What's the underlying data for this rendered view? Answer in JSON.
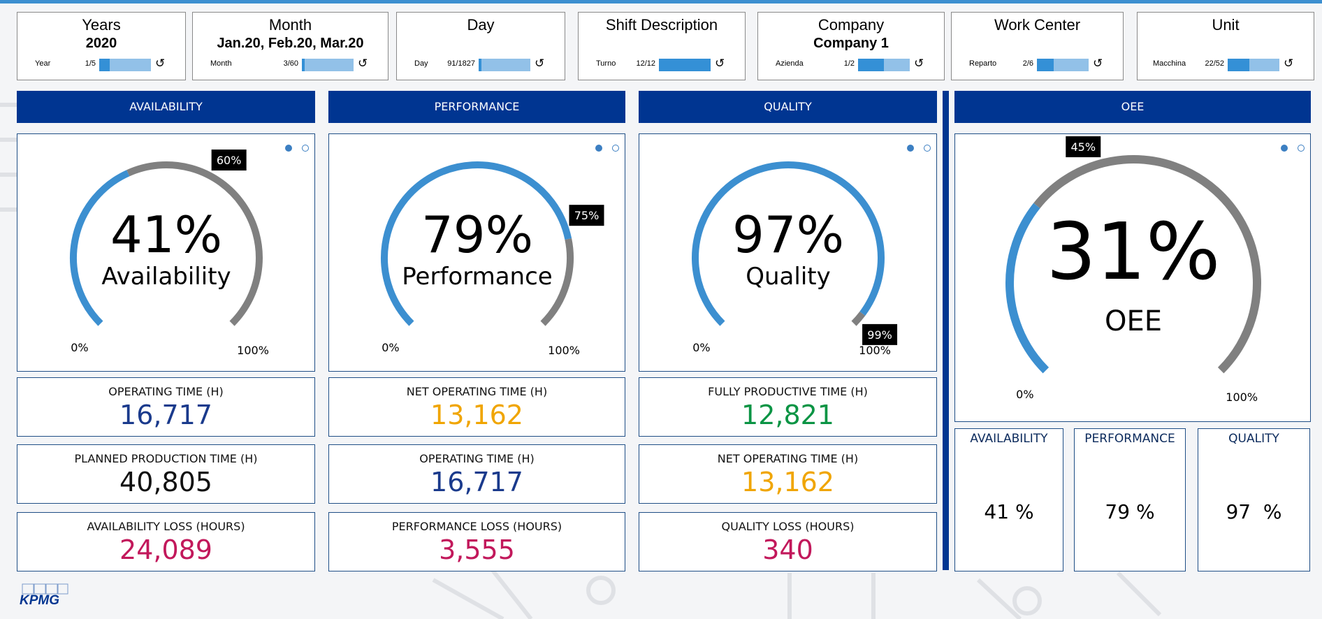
{
  "filters": [
    {
      "title": "Years",
      "value": "2020",
      "label": "Year",
      "count": "1/5",
      "fraction": 0.2
    },
    {
      "title": "Month",
      "value": "Jan.20, Feb.20, Mar.20",
      "label": "Month",
      "count": "3/60",
      "fraction": 0.05
    },
    {
      "title": "Day",
      "value": "",
      "label": "Day",
      "count": "91/1827",
      "fraction": 0.05
    },
    {
      "title": "Shift Description",
      "value": "",
      "label": "Turno",
      "count": "12/12",
      "fraction": 1.0
    },
    {
      "title": "Company",
      "value": "Company 1",
      "label": "Azienda",
      "count": "1/2",
      "fraction": 0.5
    },
    {
      "title": "Work Center",
      "value": "",
      "label": "Reparto",
      "count": "2/6",
      "fraction": 0.33
    },
    {
      "title": "Unit",
      "value": "",
      "label": "Macchina",
      "count": "22/52",
      "fraction": 0.42
    }
  ],
  "reset_icon": "reset-icon",
  "headers": {
    "availability": "AVAILABILITY",
    "performance": "PERFORMANCE",
    "quality": "QUALITY",
    "oee": "OEE"
  },
  "gauges": [
    {
      "key": "availability",
      "value_text": "41%",
      "label": "Availability",
      "value": 41,
      "target": 60,
      "target_text": "60%",
      "min_text": "0%",
      "max_text": "100%"
    },
    {
      "key": "performance",
      "value_text": "79%",
      "label": "Performance",
      "value": 79,
      "target": 75,
      "target_text": "75%",
      "min_text": "0%",
      "max_text": "100%"
    },
    {
      "key": "quality",
      "value_text": "97%",
      "label": "Quality",
      "value": 97,
      "target": 99,
      "target_text": "99%",
      "min_text": "0%",
      "max_text": "100%"
    },
    {
      "key": "oee",
      "value_text": "31%",
      "label": "OEE",
      "value": 31,
      "target": 45,
      "target_text": "45%",
      "min_text": "0%",
      "max_text": "100%"
    }
  ],
  "metrics": {
    "availability": [
      {
        "title": "OPERATING TIME (H)",
        "value": "16,717",
        "color": "#1a3a8c"
      },
      {
        "title": "PLANNED PRODUCTION TIME (H)",
        "value": "40,805",
        "color": "#111111"
      },
      {
        "title": "AVAILABILITY LOSS (HOURS)",
        "value": "24,089",
        "color": "#c2185b"
      }
    ],
    "performance": [
      {
        "title": "NET OPERATING TIME (H)",
        "value": "13,162",
        "color": "#f0a500"
      },
      {
        "title": "OPERATING TIME (H)",
        "value": "16,717",
        "color": "#1a3a8c"
      },
      {
        "title": "PERFORMANCE LOSS (HOURS)",
        "value": "3,555",
        "color": "#c2185b"
      }
    ],
    "quality": [
      {
        "title": "FULLY PRODUCTIVE TIME (H)",
        "value": "12,821",
        "color": "#0b9444"
      },
      {
        "title": "NET OPERATING TIME (H)",
        "value": "13,162",
        "color": "#f0a500"
      },
      {
        "title": "QUALITY LOSS (HOURS)",
        "value": "340",
        "color": "#c2185b"
      }
    ]
  },
  "oee_summary": [
    {
      "title": "AVAILABILITY",
      "value": "41 %"
    },
    {
      "title": "PERFORMANCE",
      "value": "79 %"
    },
    {
      "title": "QUALITY",
      "value": "97  %"
    }
  ],
  "colors": {
    "header": "#003591",
    "gauge_fill": "#3c8fd0",
    "gauge_track": "#808080",
    "accent": "#3c8fd0"
  },
  "logo": "KPMG"
}
